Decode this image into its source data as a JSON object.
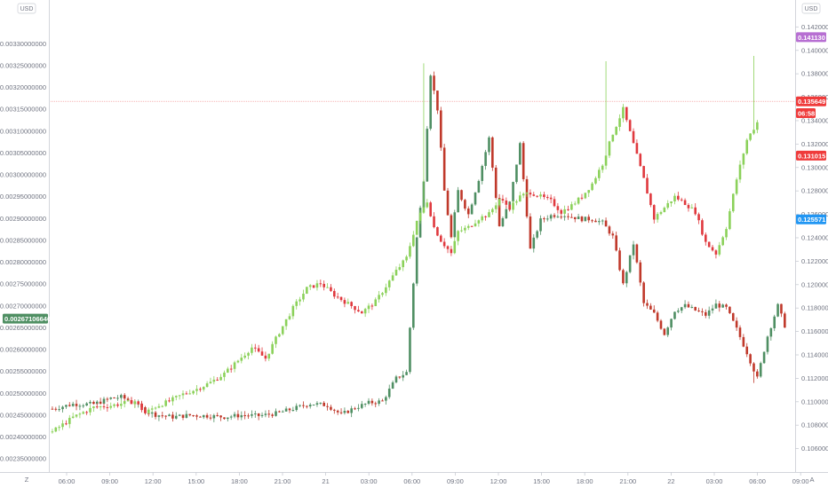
{
  "chart_data": {
    "type": "candlestick",
    "colors": {
      "up": "#8bd15a",
      "down": "#e0393e",
      "secondary_up": "#4f8f63",
      "secondary_down": "#c0392b",
      "last_line": "#f28a8a",
      "badge_purple": "#b76fd2",
      "badge_red": "#ef3b3b",
      "badge_blue": "#2196f3",
      "badge_green": "#4f8f63"
    },
    "left_axis": {
      "unit": "USD",
      "ylim": [
        0.00232,
        0.0034
      ],
      "ticks": [
        "0.00235000000",
        "0.00240000000",
        "0.00245000000",
        "0.00250000000",
        "0.00255000000",
        "0.00260000000",
        "0.00265000000",
        "0.00270000000",
        "0.00275000000",
        "0.00280000000",
        "0.00285000000",
        "0.00290000000",
        "0.00295000000",
        "0.00300000000",
        "0.00305000000",
        "0.00310000000",
        "0.00315000000",
        "0.00320000000",
        "0.00325000000",
        "0.00330000000"
      ],
      "badge": {
        "label": "0.00267106646",
        "value": 0.00267106646
      }
    },
    "right_axis": {
      "unit": "USD",
      "ylim": [
        0.104,
        0.1443
      ],
      "ticks": [
        "0.106000",
        "0.108000",
        "0.110000",
        "0.112000",
        "0.114000",
        "0.116000",
        "0.118000",
        "0.120000",
        "0.122000",
        "0.124000",
        "0.126000",
        "0.128000",
        "0.130000",
        "0.132000",
        "0.134000",
        "0.136000",
        "0.138000",
        "0.140000",
        "0.142000"
      ],
      "badges": [
        {
          "label": "0.141130",
          "value": 0.14113,
          "color": "purple"
        },
        {
          "label": "0.135649",
          "value": 0.135649,
          "color": "red"
        },
        {
          "label": "06:58",
          "value": 0.13464,
          "color": "red"
        },
        {
          "label": "0.131015",
          "value": 0.131015,
          "color": "red"
        },
        {
          "label": "0.125571",
          "value": 0.125571,
          "color": "blue"
        }
      ]
    },
    "x_axis": {
      "ticks": [
        "06:00",
        "09:00",
        "12:00",
        "15:00",
        "18:00",
        "21:00",
        "21",
        "03:00",
        "06:00",
        "09:00",
        "12:00",
        "15:00",
        "18:00",
        "21:00",
        "22",
        "03:00",
        "06:00",
        "09:00"
      ],
      "left_button": "Z",
      "right_button": "A"
    },
    "last_price_line": 0.135649,
    "series": [
      {
        "name": "",
        "style": "primary",
        "axis": "left",
        "keypoints": [
          [
            0,
            0.002412
          ],
          [
            6,
            0.002445
          ],
          [
            12,
            0.002468
          ],
          [
            17,
            0.002472
          ],
          [
            24,
            0.002482
          ],
          [
            27,
            0.002455
          ],
          [
            30,
            0.00247
          ],
          [
            34,
            0.002482
          ],
          [
            38,
            0.002498
          ],
          [
            42,
            0.00251
          ],
          [
            46,
            0.002525
          ],
          [
            50,
            0.002545
          ],
          [
            54,
            0.002575
          ],
          [
            58,
            0.002605
          ],
          [
            62,
            0.00258
          ],
          [
            66,
            0.00264
          ],
          [
            70,
            0.002695
          ],
          [
            74,
            0.00274
          ],
          [
            78,
            0.002752
          ],
          [
            82,
            0.002725
          ],
          [
            86,
            0.002705
          ],
          [
            90,
            0.002685
          ],
          [
            94,
            0.00271
          ],
          [
            97,
            0.002745
          ],
          [
            100,
            0.00278
          ],
          [
            103,
            0.00281
          ],
          [
            106,
            0.002895
          ],
          [
            109,
            0.00294
          ],
          [
            111,
            0.00288
          ],
          [
            113,
            0.00285
          ],
          [
            116,
            0.00282
          ],
          [
            118,
            0.00287
          ],
          [
            121,
            0.00288
          ],
          [
            124,
            0.0029
          ],
          [
            127,
            0.00291
          ],
          [
            130,
            0.002945
          ],
          [
            133,
            0.002925
          ],
          [
            136,
            0.00295
          ],
          [
            139,
            0.00296
          ],
          [
            142,
            0.00295
          ],
          [
            145,
            0.00294
          ],
          [
            148,
            0.002915
          ],
          [
            151,
            0.00293
          ],
          [
            154,
            0.00295
          ],
          [
            157,
            0.00298
          ],
          [
            160,
            0.003025
          ],
          [
            163,
            0.003095
          ],
          [
            166,
            0.00315
          ],
          [
            169,
            0.00307
          ],
          [
            172,
            0.00299
          ],
          [
            175,
            0.0029
          ],
          [
            178,
            0.002925
          ],
          [
            181,
            0.00295
          ],
          [
            184,
            0.002935
          ],
          [
            187,
            0.002915
          ],
          [
            190,
            0.002845
          ],
          [
            193,
            0.00282
          ],
          [
            196,
            0.00288
          ],
          [
            199,
            0.00299
          ],
          [
            202,
            0.00308
          ],
          [
            205,
            0.00312
          ]
        ],
        "highlights": [
          [
            108,
            0.003255
          ],
          [
            161,
            0.00326
          ],
          [
            204,
            0.003272
          ]
        ]
      },
      {
        "name": "",
        "style": "secondary",
        "axis": "right",
        "keypoints": [
          [
            0,
            0.1094
          ],
          [
            6,
            0.1098
          ],
          [
            12,
            0.1098
          ],
          [
            17,
            0.1103
          ],
          [
            20,
            0.1104
          ],
          [
            24,
            0.1099
          ],
          [
            27,
            0.1092
          ],
          [
            30,
            0.1089
          ],
          [
            35,
            0.1087
          ],
          [
            40,
            0.10885
          ],
          [
            45,
            0.1088
          ],
          [
            50,
            0.1087
          ],
          [
            55,
            0.10885
          ],
          [
            60,
            0.1088
          ],
          [
            65,
            0.109
          ],
          [
            70,
            0.1094
          ],
          [
            75,
            0.10985
          ],
          [
            80,
            0.1097
          ],
          [
            84,
            0.1089
          ],
          [
            88,
            0.1095
          ],
          [
            92,
            0.1099
          ],
          [
            96,
            0.11005
          ],
          [
            100,
            0.112
          ],
          [
            103,
            0.1125
          ],
          [
            106,
            0.124
          ],
          [
            108,
            0.129
          ],
          [
            110,
            0.138
          ],
          [
            112,
            0.135
          ],
          [
            114,
            0.128
          ],
          [
            116,
            0.124
          ],
          [
            118,
            0.128
          ],
          [
            121,
            0.126
          ],
          [
            124,
            0.129
          ],
          [
            127,
            0.1325
          ],
          [
            130,
            0.125
          ],
          [
            133,
            0.127
          ],
          [
            136,
            0.132
          ],
          [
            139,
            0.123
          ],
          [
            142,
            0.1255
          ],
          [
            145,
            0.1259
          ],
          [
            148,
            0.126
          ],
          [
            151,
            0.1258
          ],
          [
            154,
            0.1256
          ],
          [
            157,
            0.1256
          ],
          [
            160,
            0.1253
          ],
          [
            163,
            0.1241
          ],
          [
            166,
            0.12
          ],
          [
            169,
            0.1235
          ],
          [
            172,
            0.1184
          ],
          [
            175,
            0.1175
          ],
          [
            178,
            0.1158
          ],
          [
            181,
            0.1178
          ],
          [
            184,
            0.1182
          ],
          [
            187,
            0.1178
          ],
          [
            190,
            0.1174
          ],
          [
            193,
            0.1183
          ],
          [
            196,
            0.118
          ],
          [
            199,
            0.1162
          ],
          [
            202,
            0.1142
          ],
          [
            205,
            0.112
          ],
          [
            208,
            0.1156
          ],
          [
            211,
            0.1182
          ],
          [
            213,
            0.1165
          ]
        ],
        "highlights": [
          [
            204,
            0.1116
          ]
        ]
      }
    ]
  }
}
